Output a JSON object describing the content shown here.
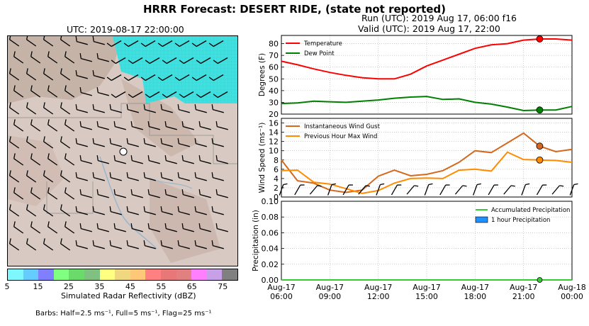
{
  "header": {
    "title": "HRRR Forecast: DESERT RIDE, (state not reported)",
    "run": "Run (UTC): 2019 Aug 17, 06:00 f16",
    "valid": "Valid (UTC): 2019 Aug 17, 22:00"
  },
  "map": {
    "time_label": "UTC: 2019-08-17 22:00:00",
    "colorbar_label": "Simulated Radar Reflectivity (dBZ)",
    "colorbar_ticks": [
      "5",
      "15",
      "25",
      "35",
      "45",
      "55",
      "65",
      "75"
    ],
    "colorbar_colors": [
      "#7ff7ff",
      "#66ccff",
      "#8080ff",
      "#80ff80",
      "#6adb6a",
      "#80c080",
      "#ffff80",
      "#f0d880",
      "#ffc878",
      "#ff8080",
      "#e87878",
      "#e08080",
      "#ff80ff",
      "#c8a0e8",
      "#808080"
    ],
    "barbs_note": "Barbs: Half=2.5 ms⁻¹, Full=5 ms⁻¹, Flag=25 ms⁻¹"
  },
  "chart_data": [
    {
      "type": "line",
      "ylabel": "Degrees (F)",
      "ylim": [
        20,
        87
      ],
      "yticks": [
        20,
        30,
        40,
        50,
        60,
        70,
        80
      ],
      "legend_position": "top-left",
      "series": [
        {
          "name": "Temperature",
          "color": "#ff0000",
          "values": [
            65,
            62,
            58.5,
            55.5,
            53,
            51,
            50,
            50,
            54,
            61,
            66,
            71,
            76,
            79,
            80,
            83,
            84,
            84,
            83
          ]
        },
        {
          "name": "Dew Point",
          "color": "#008000",
          "values": [
            29,
            29.5,
            31,
            30.5,
            30,
            31,
            32,
            33.5,
            34.5,
            35,
            32.5,
            33,
            30,
            28.5,
            26,
            23,
            23.5,
            23.5,
            26.5
          ]
        }
      ],
      "marker_index": 16
    },
    {
      "type": "line",
      "ylabel": "Wind Speed (ms⁻¹)",
      "ylim": [
        0,
        17
      ],
      "yticks": [
        0,
        2,
        4,
        6,
        8,
        10,
        12,
        14,
        16
      ],
      "legend_position": "top-left",
      "series": [
        {
          "name": "Instantaneous Wind Gust",
          "color": "#d2691e",
          "values": [
            8,
            3.5,
            3,
            1.5,
            1,
            1.5,
            4.5,
            5.8,
            4.6,
            4.9,
            5.7,
            7.5,
            10,
            9.6,
            11.7,
            13.8,
            11,
            9.8,
            10.3
          ]
        },
        {
          "name": "Previous Hour Max Wind",
          "color": "#ff8c00",
          "values": [
            5.7,
            5.8,
            3.2,
            2.8,
            1.8,
            0.8,
            1.4,
            3,
            4,
            4.1,
            4,
            5.8,
            6,
            5.6,
            9.7,
            8.1,
            8,
            7.9,
            7.5
          ]
        }
      ],
      "marker_index": 16
    },
    {
      "type": "bar",
      "ylabel": "Precipitation (in)",
      "ylim": [
        0,
        0.1
      ],
      "yticks": [
        "0.00",
        "0.02",
        "0.04",
        "0.06",
        "0.08",
        "0.10"
      ],
      "legend_position": "top-right",
      "series": [
        {
          "name": "Accumulated Precipitation",
          "color": "#32cd32",
          "values": [
            0,
            0,
            0,
            0,
            0,
            0,
            0,
            0,
            0,
            0,
            0,
            0,
            0,
            0,
            0,
            0,
            0,
            0,
            0
          ]
        },
        {
          "name": "1 hour Precipitation",
          "color": "#1e90ff",
          "values": [
            0,
            0,
            0,
            0,
            0,
            0,
            0,
            0,
            0,
            0,
            0,
            0,
            0,
            0,
            0,
            0,
            0,
            0,
            0
          ]
        }
      ],
      "xtick_labels": [
        [
          "Aug-17",
          "06:00"
        ],
        [
          "Aug-17",
          "09:00"
        ],
        [
          "Aug-17",
          "12:00"
        ],
        [
          "Aug-17",
          "15:00"
        ],
        [
          "Aug-17",
          "18:00"
        ],
        [
          "Aug-17",
          "21:00"
        ],
        [
          "Aug-18",
          "00:00"
        ]
      ],
      "marker_index": 16
    }
  ]
}
